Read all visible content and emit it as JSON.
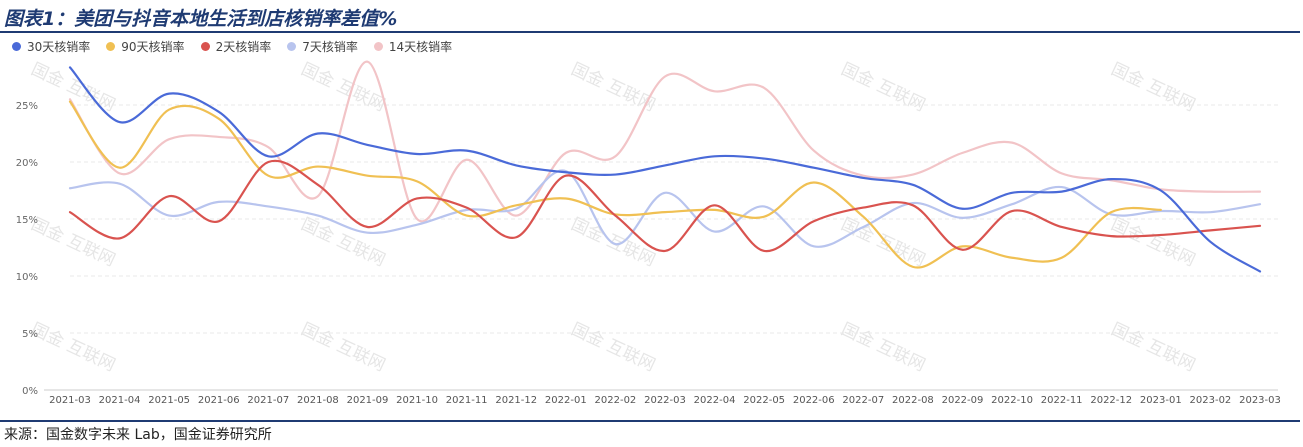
{
  "header": {
    "title": "图表1：美团与抖音本地生活到店核销率差值%"
  },
  "footer": {
    "source": "来源：国金数字未来 Lab，国金证券研究所"
  },
  "watermark": {
    "text": "国金 互联网"
  },
  "colors": {
    "accent": "#1f3b73"
  },
  "chart_data": {
    "type": "line",
    "title": "",
    "xlabel": "",
    "ylabel": "",
    "ylim": [
      0,
      30
    ],
    "yticks": [
      0,
      5,
      10,
      15,
      20,
      25
    ],
    "ytick_labels": [
      "0%",
      "5%",
      "10%",
      "15%",
      "20%",
      "25%"
    ],
    "grid": true,
    "legend_position": "top-left",
    "categories": [
      "2021-03",
      "2021-04",
      "2021-05",
      "2021-06",
      "2021-07",
      "2021-08",
      "2021-09",
      "2021-10",
      "2021-11",
      "2021-12",
      "2022-01",
      "2022-02",
      "2022-03",
      "2022-04",
      "2022-05",
      "2022-06",
      "2022-07",
      "2022-08",
      "2022-09",
      "2022-10",
      "2022-11",
      "2022-12",
      "2023-01",
      "2023-02",
      "2023-03"
    ],
    "series": [
      {
        "name": "30天核销率",
        "color": "#4a6ad8",
        "values": [
          28.3,
          23.5,
          26.0,
          24.4,
          20.5,
          22.5,
          21.5,
          20.7,
          21.0,
          19.7,
          19.1,
          18.9,
          19.7,
          20.5,
          20.3,
          19.5,
          18.6,
          18.0,
          15.9,
          17.3,
          17.4,
          18.5,
          17.5,
          13.0,
          10.4
        ]
      },
      {
        "name": "90天核销率",
        "color": "#f0c053",
        "values": [
          25.3,
          19.5,
          24.6,
          23.8,
          18.8,
          19.6,
          18.8,
          18.3,
          15.3,
          16.2,
          16.8,
          15.4,
          15.6,
          15.8,
          15.2,
          18.2,
          15.2,
          10.8,
          12.6,
          11.6,
          11.6,
          15.6,
          15.8,
          null,
          null
        ]
      },
      {
        "name": "2天核销率",
        "color": "#d9534f",
        "values": [
          15.6,
          13.3,
          17.0,
          14.8,
          20.0,
          18.0,
          14.3,
          16.8,
          16.0,
          13.4,
          18.8,
          15.3,
          12.2,
          16.2,
          12.2,
          14.8,
          16.0,
          16.2,
          12.3,
          15.7,
          14.3,
          13.5,
          13.6,
          14.0,
          14.4
        ]
      },
      {
        "name": "7天核销率",
        "color": "#b8c4ee",
        "values": [
          17.7,
          18.1,
          15.3,
          16.5,
          16.1,
          15.3,
          13.8,
          14.5,
          15.8,
          15.9,
          19.2,
          12.8,
          17.3,
          13.9,
          16.1,
          12.6,
          14.3,
          16.4,
          15.1,
          16.3,
          17.8,
          15.4,
          15.7,
          15.6,
          16.3
        ]
      },
      {
        "name": "14天核销率",
        "color": "#f2c4c7",
        "values": [
          25.5,
          19.0,
          22.0,
          22.2,
          21.3,
          17.0,
          28.8,
          15.0,
          20.2,
          15.3,
          20.8,
          20.5,
          27.5,
          26.2,
          26.5,
          21.0,
          18.8,
          18.9,
          20.8,
          21.7,
          19.0,
          18.4,
          17.6,
          17.4,
          17.4
        ]
      }
    ]
  }
}
